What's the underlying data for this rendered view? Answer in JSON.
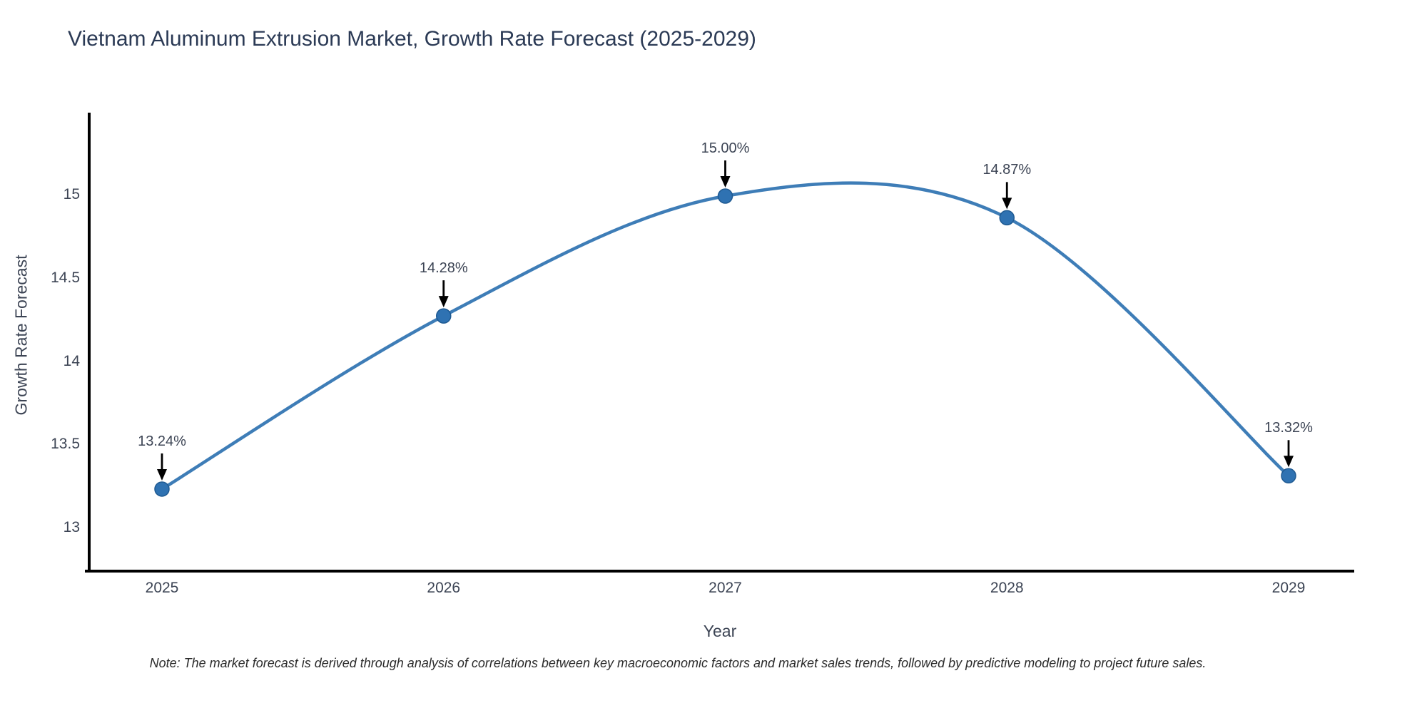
{
  "chart_data": {
    "type": "line",
    "title": "Vietnam Aluminum Extrusion Market, Growth Rate Forecast (2025-2029)",
    "xlabel": "Year",
    "ylabel": "Growth Rate Forecast",
    "categories": [
      "2025",
      "2026",
      "2027",
      "2028",
      "2029"
    ],
    "values": [
      13.24,
      14.28,
      15.0,
      14.87,
      13.32
    ],
    "point_labels": [
      "13.24%",
      "14.28%",
      "15.00%",
      "14.87%",
      "13.32%"
    ],
    "ytick_labels": [
      "13",
      "13.5",
      "14",
      "14.5",
      "15"
    ],
    "ytick_values": [
      13,
      13.5,
      14,
      14.5,
      15
    ],
    "ylim": [
      12.74,
      15.5
    ],
    "curve": "spline",
    "grid": false,
    "legend": "none",
    "line_color": "#3e7db7",
    "marker_color": "#2f72b2",
    "marker_edge_color": "#1f5a92",
    "arrow_color": "#000000",
    "axis_color": "#000000",
    "text_color": "#3c4454",
    "title_color": "#2b3a55"
  },
  "footnote": {
    "text": "Note: The market forecast is derived through analysis of correlations between key macroeconomic factors and market sales trends, followed by predictive modeling to project future sales."
  }
}
